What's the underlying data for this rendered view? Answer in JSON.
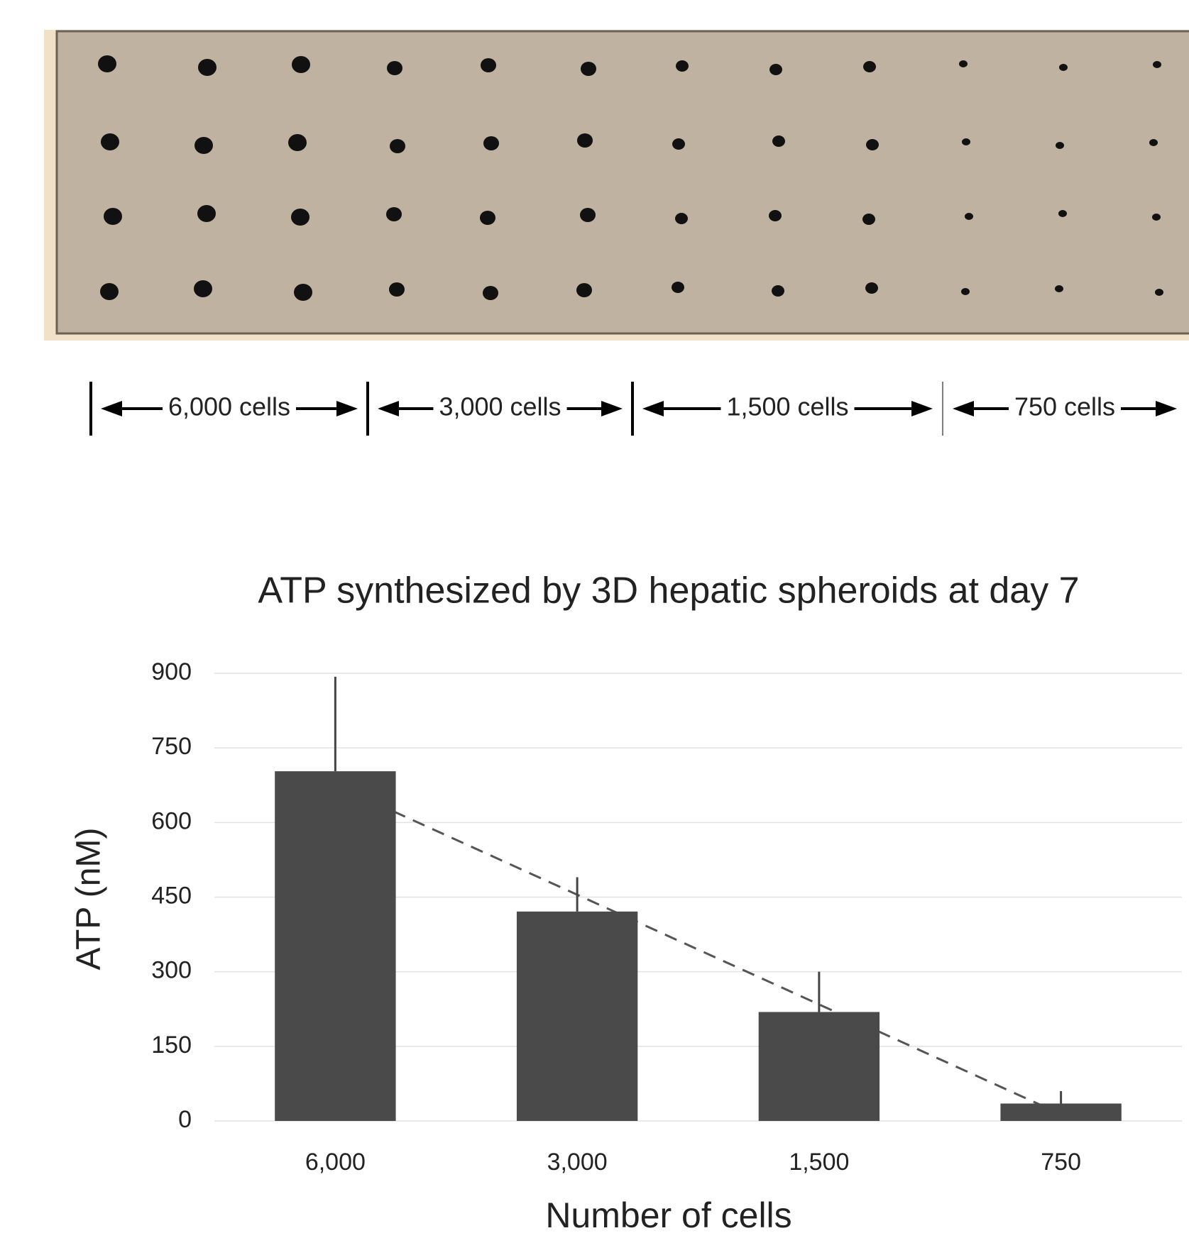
{
  "plate": {
    "group_labels": [
      "6,000 cells",
      "3,000 cells",
      "1,500 cells",
      "750 cells"
    ]
  },
  "chart_data": {
    "type": "bar",
    "title": "ATP synthesized by 3D hepatic spheroids at day 7",
    "x_label": "Number of cells",
    "y_label": "ATP (nM)",
    "categories": [
      "6,000",
      "3,000",
      "1,500",
      "750"
    ],
    "values": [
      703,
      421,
      219,
      35
    ],
    "errors": [
      190,
      69,
      81,
      25
    ],
    "color": "#4a4a4a",
    "trendline": "linear",
    "ylim": [
      0,
      900
    ],
    "yticks": [
      0,
      150,
      300,
      450,
      600,
      750,
      900
    ],
    "grid": true
  }
}
